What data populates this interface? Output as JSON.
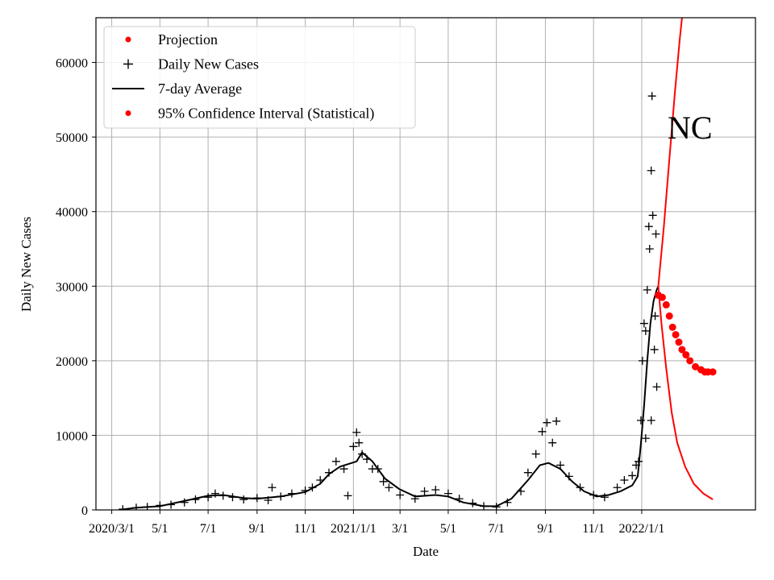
{
  "chart_data": {
    "type": "line",
    "xlabel": "Date",
    "ylabel": "Daily New Cases",
    "annotation": "NC",
    "grid": true,
    "legend_position": "top-left",
    "xlim": [
      "2020-02-10",
      "2022-05-25"
    ],
    "ylim": [
      0,
      66000
    ],
    "x_ticks": [
      {
        "date": "2020-03-01",
        "label": "2020/3/1"
      },
      {
        "date": "2020-05-01",
        "label": "5/1"
      },
      {
        "date": "2020-07-01",
        "label": "7/1"
      },
      {
        "date": "2020-09-01",
        "label": "9/1"
      },
      {
        "date": "2020-11-01",
        "label": "11/1"
      },
      {
        "date": "2021-01-01",
        "label": "2021/1/1"
      },
      {
        "date": "2021-03-01",
        "label": "3/1"
      },
      {
        "date": "2021-05-01",
        "label": "5/1"
      },
      {
        "date": "2021-07-01",
        "label": "7/1"
      },
      {
        "date": "2021-09-01",
        "label": "9/1"
      },
      {
        "date": "2021-11-01",
        "label": "11/1"
      },
      {
        "date": "2022-01-01",
        "label": "2022/1/1"
      }
    ],
    "y_ticks": [
      {
        "value": 0,
        "label": "0"
      },
      {
        "value": 10000,
        "label": "10000"
      },
      {
        "value": 20000,
        "label": "20000"
      },
      {
        "value": 30000,
        "label": "30000"
      },
      {
        "value": 40000,
        "label": "40000"
      },
      {
        "value": 50000,
        "label": "50000"
      },
      {
        "value": 60000,
        "label": "60000"
      }
    ],
    "legend": [
      {
        "label": "Projection",
        "marker": "dot",
        "color": "#ff0000"
      },
      {
        "label": "Daily New Cases",
        "marker": "plus",
        "color": "#000000"
      },
      {
        "label": "7-day Average",
        "marker": "line",
        "color": "#000000"
      },
      {
        "label": "95% Confidence Interval (Statistical)",
        "marker": "dot",
        "color": "#ff0000"
      }
    ],
    "series": [
      {
        "name": "7-day Average",
        "style": "line",
        "color": "#000000",
        "points": [
          [
            "2020-03-10",
            0
          ],
          [
            "2020-04-01",
            300
          ],
          [
            "2020-05-01",
            500
          ],
          [
            "2020-06-01",
            1200
          ],
          [
            "2020-07-01",
            1900
          ],
          [
            "2020-07-20",
            2000
          ],
          [
            "2020-08-15",
            1600
          ],
          [
            "2020-09-01",
            1500
          ],
          [
            "2020-10-01",
            1800
          ],
          [
            "2020-11-01",
            2400
          ],
          [
            "2020-11-20",
            3500
          ],
          [
            "2020-12-01",
            4800
          ],
          [
            "2020-12-15",
            5800
          ],
          [
            "2021-01-05",
            6500
          ],
          [
            "2021-01-12",
            7700
          ],
          [
            "2021-01-25",
            6500
          ],
          [
            "2021-02-10",
            4200
          ],
          [
            "2021-02-28",
            2800
          ],
          [
            "2021-03-20",
            1800
          ],
          [
            "2021-04-15",
            2000
          ],
          [
            "2021-05-01",
            1800
          ],
          [
            "2021-05-20",
            1000
          ],
          [
            "2021-06-15",
            500
          ],
          [
            "2021-07-01",
            500
          ],
          [
            "2021-07-20",
            1500
          ],
          [
            "2021-08-10",
            4000
          ],
          [
            "2021-08-25",
            6000
          ],
          [
            "2021-09-05",
            6300
          ],
          [
            "2021-09-20",
            5500
          ],
          [
            "2021-10-05",
            3800
          ],
          [
            "2021-10-20",
            2500
          ],
          [
            "2021-11-05",
            1800
          ],
          [
            "2021-11-20",
            2000
          ],
          [
            "2021-12-05",
            2500
          ],
          [
            "2021-12-20",
            3300
          ],
          [
            "2021-12-27",
            4500
          ],
          [
            "2021-12-31",
            9000
          ],
          [
            "2022-01-04",
            14000
          ],
          [
            "2022-01-08",
            20000
          ],
          [
            "2022-01-12",
            25000
          ],
          [
            "2022-01-16",
            28000
          ],
          [
            "2022-01-20",
            29500
          ],
          [
            "2022-01-22",
            30000
          ]
        ]
      },
      {
        "name": "Projection",
        "style": "line",
        "color": "#ff0000",
        "points": [
          [
            "2022-01-22",
            30000
          ],
          [
            "2022-01-29",
            38000
          ],
          [
            "2022-02-05",
            47000
          ],
          [
            "2022-02-12",
            56000
          ],
          [
            "2022-02-18",
            63000
          ],
          [
            "2022-02-21",
            66000
          ]
        ]
      },
      {
        "name": "Projection",
        "style": "line",
        "color": "#ff0000",
        "points": [
          [
            "2022-01-22",
            30000
          ],
          [
            "2022-01-26",
            25000
          ],
          [
            "2022-02-01",
            19000
          ],
          [
            "2022-02-08",
            13000
          ],
          [
            "2022-02-15",
            9000
          ],
          [
            "2022-02-25",
            5800
          ],
          [
            "2022-03-08",
            3500
          ],
          [
            "2022-03-20",
            2200
          ],
          [
            "2022-04-01",
            1400
          ]
        ]
      },
      {
        "name": "95% Confidence Interval (Statistical)",
        "style": "dots",
        "color": "#ff0000",
        "points": [
          [
            "2022-01-22",
            28800
          ],
          [
            "2022-01-27",
            28500
          ],
          [
            "2022-02-01",
            27500
          ],
          [
            "2022-02-05",
            26000
          ],
          [
            "2022-02-09",
            24500
          ],
          [
            "2022-02-13",
            23500
          ],
          [
            "2022-02-17",
            22500
          ],
          [
            "2022-02-21",
            21500
          ],
          [
            "2022-02-26",
            20800
          ],
          [
            "2022-03-03",
            20000
          ],
          [
            "2022-03-10",
            19200
          ],
          [
            "2022-03-17",
            18800
          ],
          [
            "2022-03-22",
            18500
          ],
          [
            "2022-03-26",
            18500
          ],
          [
            "2022-04-01",
            18500
          ]
        ]
      },
      {
        "name": "Daily New Cases",
        "style": "plus",
        "color": "#000000",
        "points": [
          [
            "2020-03-15",
            100
          ],
          [
            "2020-04-01",
            300
          ],
          [
            "2020-04-15",
            400
          ],
          [
            "2020-05-01",
            600
          ],
          [
            "2020-05-15",
            700
          ],
          [
            "2020-06-01",
            1000
          ],
          [
            "2020-06-15",
            1400
          ],
          [
            "2020-07-01",
            1700
          ],
          [
            "2020-07-10",
            2200
          ],
          [
            "2020-07-20",
            1900
          ],
          [
            "2020-08-01",
            1700
          ],
          [
            "2020-08-15",
            1400
          ],
          [
            "2020-09-01",
            1600
          ],
          [
            "2020-09-15",
            1300
          ],
          [
            "2020-09-20",
            3000
          ],
          [
            "2020-10-01",
            1800
          ],
          [
            "2020-10-15",
            2200
          ],
          [
            "2020-11-01",
            2600
          ],
          [
            "2020-11-10",
            3000
          ],
          [
            "2020-11-20",
            4000
          ],
          [
            "2020-12-01",
            5000
          ],
          [
            "2020-12-10",
            6500
          ],
          [
            "2020-12-20",
            5500
          ],
          [
            "2020-12-25",
            1900
          ],
          [
            "2021-01-01",
            8500
          ],
          [
            "2021-01-05",
            10400
          ],
          [
            "2021-01-08",
            9000
          ],
          [
            "2021-01-12",
            7500
          ],
          [
            "2021-01-18",
            6800
          ],
          [
            "2021-01-25",
            5500
          ],
          [
            "2021-02-01",
            5500
          ],
          [
            "2021-02-08",
            3800
          ],
          [
            "2021-02-15",
            3000
          ],
          [
            "2021-03-01",
            2000
          ],
          [
            "2021-03-20",
            1500
          ],
          [
            "2021-04-01",
            2500
          ],
          [
            "2021-04-15",
            2700
          ],
          [
            "2021-05-01",
            2200
          ],
          [
            "2021-05-15",
            1500
          ],
          [
            "2021-06-01",
            900
          ],
          [
            "2021-06-15",
            500
          ],
          [
            "2021-07-01",
            400
          ],
          [
            "2021-07-15",
            1000
          ],
          [
            "2021-08-01",
            2500
          ],
          [
            "2021-08-10",
            5000
          ],
          [
            "2021-08-20",
            7500
          ],
          [
            "2021-08-28",
            10500
          ],
          [
            "2021-09-03",
            11700
          ],
          [
            "2021-09-10",
            9000
          ],
          [
            "2021-09-15",
            11900
          ],
          [
            "2021-09-20",
            6000
          ],
          [
            "2021-10-01",
            4500
          ],
          [
            "2021-10-15",
            3000
          ],
          [
            "2021-11-01",
            2000
          ],
          [
            "2021-11-15",
            1700
          ],
          [
            "2021-12-01",
            3000
          ],
          [
            "2021-12-10",
            4000
          ],
          [
            "2021-12-20",
            4600
          ],
          [
            "2021-12-25",
            6000
          ],
          [
            "2021-12-28",
            6500
          ],
          [
            "2021-12-31",
            12000
          ],
          [
            "2022-01-02",
            20000
          ],
          [
            "2022-01-04",
            25000
          ],
          [
            "2022-01-06",
            24000
          ],
          [
            "2022-01-08",
            29500
          ],
          [
            "2022-01-10",
            38000
          ],
          [
            "2022-01-11",
            35000
          ],
          [
            "2022-01-13",
            45500
          ],
          [
            "2022-01-14",
            55500
          ],
          [
            "2022-01-15",
            39500
          ],
          [
            "2022-01-17",
            21500
          ],
          [
            "2022-01-18",
            26000
          ],
          [
            "2022-01-19",
            37000
          ],
          [
            "2022-01-20",
            16500
          ],
          [
            "2022-01-13",
            12000
          ],
          [
            "2022-01-06",
            9600
          ]
        ]
      }
    ]
  }
}
